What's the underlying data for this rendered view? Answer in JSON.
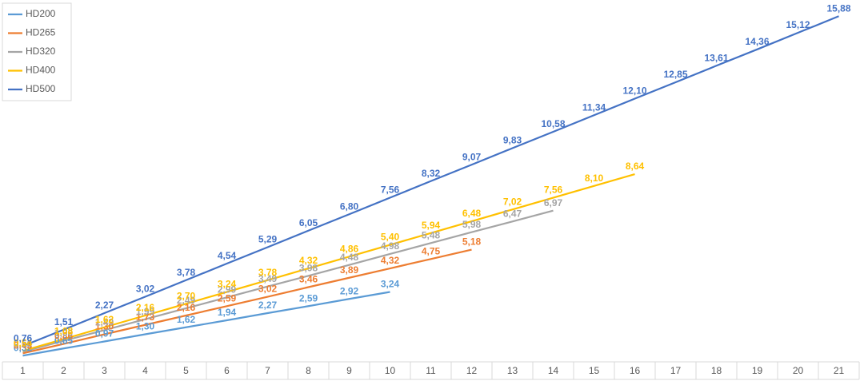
{
  "chart_data": {
    "type": "line",
    "categories": [
      "1",
      "2",
      "3",
      "4",
      "5",
      "6",
      "7",
      "8",
      "9",
      "10",
      "11",
      "12",
      "13",
      "14",
      "15",
      "16",
      "17",
      "18",
      "19",
      "20",
      "21"
    ],
    "ylim": [
      0,
      16
    ],
    "legend": "top-left",
    "series": [
      {
        "name": "HD200",
        "color": "#5b9bd5",
        "values": [
          0.32,
          0.65,
          0.97,
          1.3,
          1.62,
          1.94,
          2.27,
          2.59,
          2.92,
          3.24,
          null,
          null,
          null,
          null,
          null,
          null,
          null,
          null,
          null,
          null,
          null
        ],
        "value_labels": [
          "0,32",
          "0,65",
          "0,97",
          "1,30",
          "1,62",
          "1,94",
          "2,27",
          "2,59",
          "2,92",
          "3,24",
          null,
          null,
          null,
          null,
          null,
          null,
          null,
          null,
          null,
          null,
          null
        ]
      },
      {
        "name": "HD265",
        "color": "#ed7d31",
        "values": [
          0.43,
          0.86,
          1.3,
          1.73,
          2.16,
          2.59,
          3.02,
          3.46,
          3.89,
          4.32,
          4.75,
          5.18,
          null,
          null,
          null,
          null,
          null,
          null,
          null,
          null,
          null
        ],
        "value_labels": [
          "0,43",
          "0,86",
          "1,30",
          "1,73",
          "2,16",
          "2,59",
          "3,02",
          "3,46",
          "3,89",
          "4,32",
          "4,75",
          "5,18",
          null,
          null,
          null,
          null,
          null,
          null,
          null,
          null,
          null
        ]
      },
      {
        "name": "HD320",
        "color": "#a5a5a5",
        "values": [
          0.5,
          1.0,
          1.49,
          1.99,
          2.49,
          2.99,
          3.49,
          3.98,
          4.48,
          4.98,
          5.48,
          5.98,
          6.47,
          6.97,
          null,
          null,
          null,
          null,
          null,
          null,
          null
        ],
        "value_labels": [
          "0,50",
          "1,00",
          "1,49",
          "1,99",
          "2,49",
          "2,99",
          "3,49",
          "3,98",
          "4,48",
          "4,98",
          "5,48",
          "5,98",
          "6,47",
          "6,97",
          null,
          null,
          null,
          null,
          null,
          null,
          null
        ]
      },
      {
        "name": "HD400",
        "color": "#ffc000",
        "values": [
          0.54,
          1.08,
          1.62,
          2.16,
          2.7,
          3.24,
          3.78,
          4.32,
          4.86,
          5.4,
          5.94,
          6.48,
          7.02,
          7.56,
          8.1,
          8.64,
          null,
          null,
          null,
          null,
          null
        ],
        "value_labels": [
          "0,54",
          "1,08",
          "1,62",
          "2,16",
          "2,70",
          "3,24",
          "3,78",
          "4,32",
          "4,86",
          "5,40",
          "5,94",
          "6,48",
          "7,02",
          "7,56",
          "8,10",
          "8,64",
          null,
          null,
          null,
          null,
          null
        ]
      },
      {
        "name": "HD500",
        "color": "#4472c4",
        "values": [
          0.76,
          1.51,
          2.27,
          3.02,
          3.78,
          4.54,
          5.29,
          6.05,
          6.8,
          7.56,
          8.32,
          9.07,
          9.83,
          10.58,
          11.34,
          12.1,
          12.85,
          13.61,
          14.36,
          15.12,
          15.88
        ],
        "value_labels": [
          "0,76",
          "1,51",
          "2,27",
          "3,02",
          "3,78",
          "4,54",
          "5,29",
          "6,05",
          "6,80",
          "7,56",
          "8,32",
          "9,07",
          "9,83",
          "10,58",
          "11,34",
          "12,10",
          "12,85",
          "13,61",
          "14,36",
          "15,12",
          "15,88"
        ]
      }
    ]
  }
}
